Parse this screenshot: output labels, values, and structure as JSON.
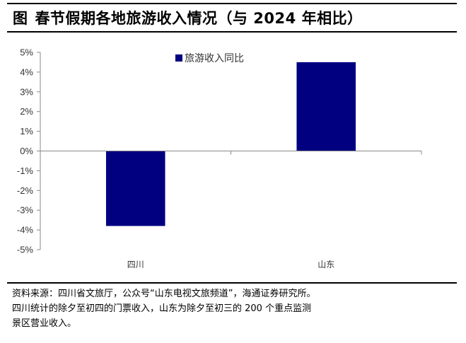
{
  "figure": {
    "label": "图",
    "title": "春节假期各地旅游收入情况（与 2024 年相比）"
  },
  "chart_data": {
    "type": "bar",
    "categories": [
      "四川",
      "山东"
    ],
    "series": [
      {
        "name": "旅游收入同比",
        "values": [
          -3.8,
          4.5
        ],
        "color": "#000080"
      }
    ],
    "ylim": [
      -5,
      5
    ],
    "yticks": [
      5,
      4,
      3,
      2,
      1,
      0,
      -1,
      -2,
      -3,
      -4,
      -5
    ],
    "yticklabels": [
      "5%",
      "4%",
      "3%",
      "2%",
      "1%",
      "0%",
      "-1%",
      "-2%",
      "-3%",
      "-4%",
      "-5%"
    ],
    "grid": false,
    "legend_position": "top-center"
  },
  "source": {
    "lines": [
      "资料来源：四川省文旅厅，公众号“山东电视文旅频道”，海通证券研究所。",
      "四川统计的除夕至初四的门票收入，山东为除夕至初三的 200 个重点监测",
      "景区营业收入。"
    ]
  }
}
